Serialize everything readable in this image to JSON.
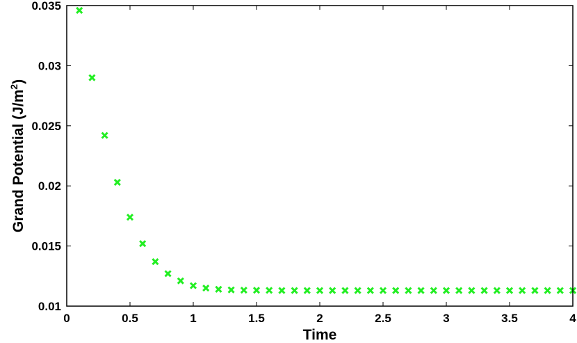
{
  "chart_data": {
    "type": "scatter",
    "xlabel": "Time",
    "ylabel": "Grand Potential (J/m",
    "ylabel_sup": "2",
    "ylabel_close": ")",
    "xlim": [
      0,
      4
    ],
    "ylim": [
      0.01,
      0.035
    ],
    "xticks": [
      0,
      0.5,
      1,
      1.5,
      2,
      2.5,
      3,
      3.5,
      4
    ],
    "xtick_labels": [
      "0",
      "0.5",
      "1",
      "1.5",
      "2",
      "2.5",
      "3",
      "3.5",
      "4"
    ],
    "yticks": [
      0.01,
      0.015,
      0.02,
      0.025,
      0.03,
      0.035
    ],
    "ytick_labels": [
      "0.01",
      "0.015",
      "0.02",
      "0.025",
      "0.03",
      "0.035"
    ],
    "marker": "x",
    "color": "#22ee22",
    "grid": false,
    "series": [
      {
        "x": [
          0.1,
          0.2,
          0.3,
          0.4,
          0.5,
          0.6,
          0.7,
          0.8,
          0.9,
          1.0,
          1.1,
          1.2,
          1.3,
          1.4,
          1.5,
          1.6,
          1.7,
          1.8,
          1.9,
          2.0,
          2.1,
          2.2,
          2.3,
          2.4,
          2.5,
          2.6,
          2.7,
          2.8,
          2.9,
          3.0,
          3.1,
          3.2,
          3.3,
          3.4,
          3.5,
          3.6,
          3.7,
          3.8,
          3.9,
          4.0
        ],
        "y": [
          0.0346,
          0.029,
          0.0242,
          0.0203,
          0.0174,
          0.0152,
          0.0137,
          0.0127,
          0.0121,
          0.0117,
          0.0115,
          0.0114,
          0.01135,
          0.01133,
          0.01132,
          0.01131,
          0.0113,
          0.0113,
          0.0113,
          0.0113,
          0.0113,
          0.0113,
          0.0113,
          0.0113,
          0.0113,
          0.0113,
          0.0113,
          0.0113,
          0.0113,
          0.0113,
          0.0113,
          0.0113,
          0.0113,
          0.0113,
          0.0113,
          0.0113,
          0.0113,
          0.0113,
          0.0113,
          0.0113
        ]
      }
    ]
  }
}
